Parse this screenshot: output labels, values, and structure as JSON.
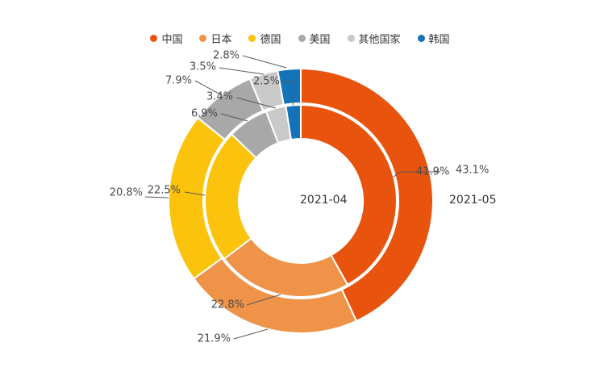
{
  "chart_data": {
    "type": "pie",
    "variant": "nested-donut",
    "categories": [
      "中国",
      "日本",
      "德国",
      "美国",
      "其他国家",
      "韩国"
    ],
    "colors": [
      "#E8540E",
      "#EE9348",
      "#FBC30B",
      "#A8A8A8",
      "#C9C9C9",
      "#1373B8"
    ],
    "unit": "%",
    "series": [
      {
        "name": "2021-04",
        "ring": "inner",
        "values": [
          41.9,
          22.8,
          22.5,
          6.9,
          3.4,
          2.5
        ]
      },
      {
        "name": "2021-05",
        "ring": "outer",
        "values": [
          43.1,
          21.9,
          20.8,
          7.9,
          3.5,
          2.8
        ]
      }
    ],
    "legend_position": "top",
    "label_format": "one-decimal-percent",
    "start_angle": "top-clockwise"
  }
}
